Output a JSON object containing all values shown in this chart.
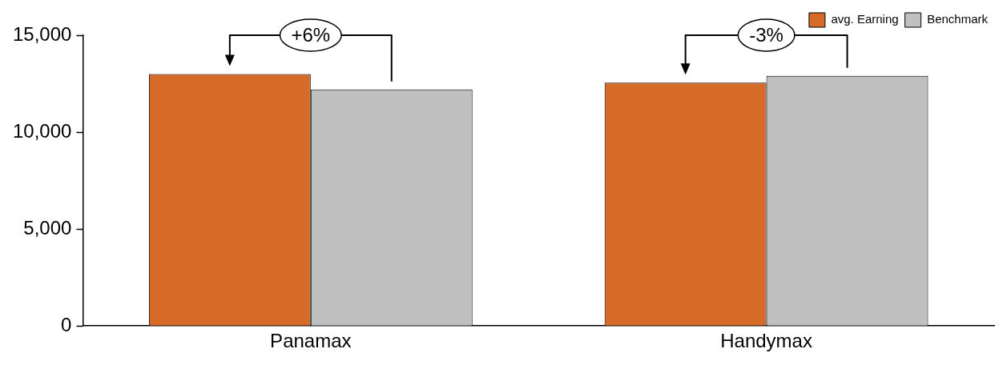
{
  "chart_data": {
    "type": "bar",
    "categories": [
      "Panamax",
      "Handymax"
    ],
    "series": [
      {
        "name": "avg. Earning",
        "color": "#d56b27",
        "values": [
          13000,
          12550
        ]
      },
      {
        "name": "Benchmark",
        "color": "#c0c0c0",
        "values": [
          12200,
          12900
        ]
      }
    ],
    "ylim": [
      0,
      15000
    ],
    "yticks": [
      0,
      {
        "value": 5000,
        "label": "5,000"
      },
      {
        "value": 10000,
        "label": "10,000"
      },
      {
        "value": 15000,
        "label": "15,000"
      }
    ],
    "grid": false,
    "legend": "top right",
    "annotations": [
      "+6%",
      "-3%"
    ]
  }
}
